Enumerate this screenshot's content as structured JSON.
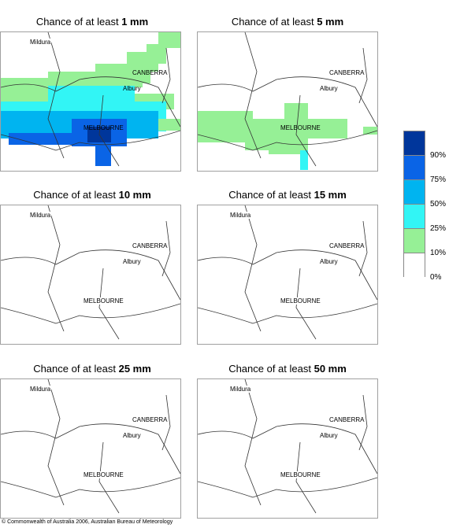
{
  "panels": [
    {
      "title_prefix": "Chance of at least ",
      "title_amount": "1 mm"
    },
    {
      "title_prefix": "Chance of at least ",
      "title_amount": "5 mm"
    },
    {
      "title_prefix": "Chance of at least ",
      "title_amount": "10 mm"
    },
    {
      "title_prefix": "Chance of at least ",
      "title_amount": "15 mm"
    },
    {
      "title_prefix": "Chance of at least ",
      "title_amount": "25 mm"
    },
    {
      "title_prefix": "Chance of at least ",
      "title_amount": "50 mm"
    }
  ],
  "places": {
    "mildura": "Mildura",
    "canberra": "CANBERRA",
    "albury": "Albury",
    "melbourne": "MELBOURNE"
  },
  "legend": {
    "labels": [
      "90%",
      "75%",
      "50%",
      "25%",
      "10%",
      "0%"
    ],
    "colors": [
      "#00369b",
      "#0a64e6",
      "#00b4f0",
      "#32f5f5",
      "#96f096",
      "#ffffff"
    ]
  },
  "copyright": "© Commonwealth of Australia 2006, Australian Bureau of Meteorology"
}
